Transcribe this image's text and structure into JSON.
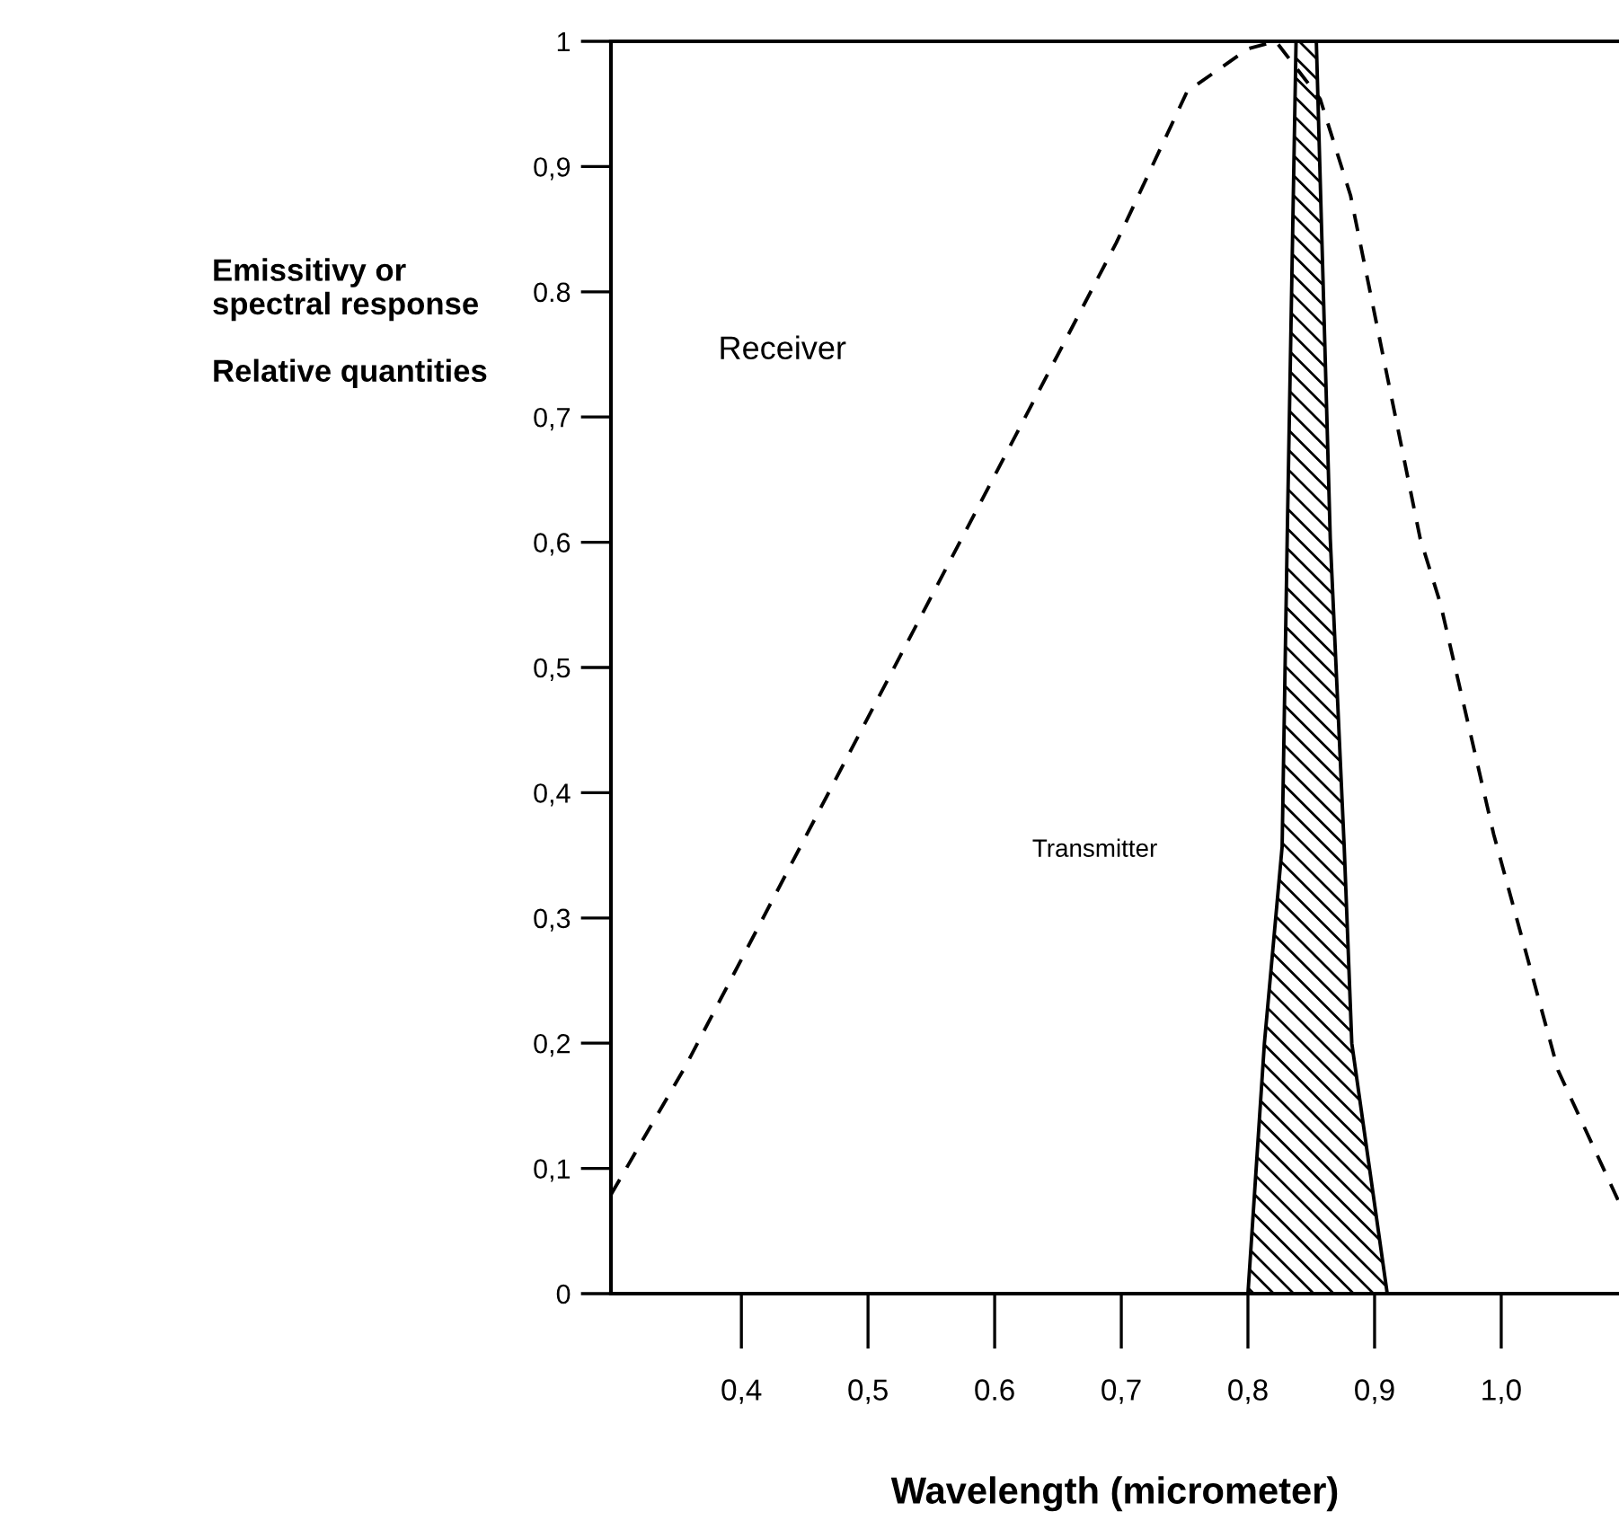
{
  "chart_data": {
    "type": "line",
    "xlabel": "Wavelength (micrometer)",
    "ylabel": "Emissitivy or\nspectral response\n\nRelative quantities",
    "xlim": [
      0.297,
      1.093
    ],
    "ylim": [
      0,
      1
    ],
    "xticks": [
      {
        "value": 0.4,
        "label": "0,4"
      },
      {
        "value": 0.5,
        "label": "0,5"
      },
      {
        "value": 0.6,
        "label": "0.6"
      },
      {
        "value": 0.7,
        "label": "0,7"
      },
      {
        "value": 0.8,
        "label": "0,8"
      },
      {
        "value": 0.9,
        "label": "0,9"
      },
      {
        "value": 1.0,
        "label": "1,0"
      }
    ],
    "yticks": [
      0,
      {
        "value": 0.1,
        "label": "0,1"
      },
      {
        "value": 0.2,
        "label": "0,2"
      },
      {
        "value": 0.3,
        "label": "0,3"
      },
      {
        "value": 0.4,
        "label": "0,4"
      },
      {
        "value": 0.5,
        "label": "0,5"
      },
      {
        "value": 0.6,
        "label": "0,6"
      },
      {
        "value": 0.7,
        "label": "0,7"
      },
      {
        "value": 0.8,
        "label": "0.8"
      },
      {
        "value": 0.9,
        "label": "0,9"
      },
      1
    ],
    "grid": false,
    "legend": false,
    "marker": "none",
    "series": [
      {
        "line_style": "dashed",
        "color": "#000000",
        "x": [
          0.297,
          0.355,
          0.574,
          0.696,
          0.752,
          0.8,
          0.822,
          0.857,
          0.881,
          0.936,
          0.952,
          0.994,
          1.045,
          1.093
        ],
        "values": [
          0.079,
          0.18,
          0.603,
          0.839,
          0.96,
          0.994,
          1.0,
          0.954,
          0.877,
          0.603,
          0.551,
          0.367,
          0.178,
          0.073
        ]
      },
      {
        "type": "area",
        "color": "#000000",
        "x": [
          0.8,
          0.813,
          0.827,
          0.831,
          0.838,
          0.854,
          0.865,
          0.876,
          0.882,
          0.91
        ],
        "values": [
          0,
          0.2,
          0.357,
          0.603,
          1.0,
          1.0,
          0.603,
          0.357,
          0.2,
          0
        ]
      }
    ],
    "annotations": [
      "Receiver",
      "Transmitter"
    ]
  }
}
